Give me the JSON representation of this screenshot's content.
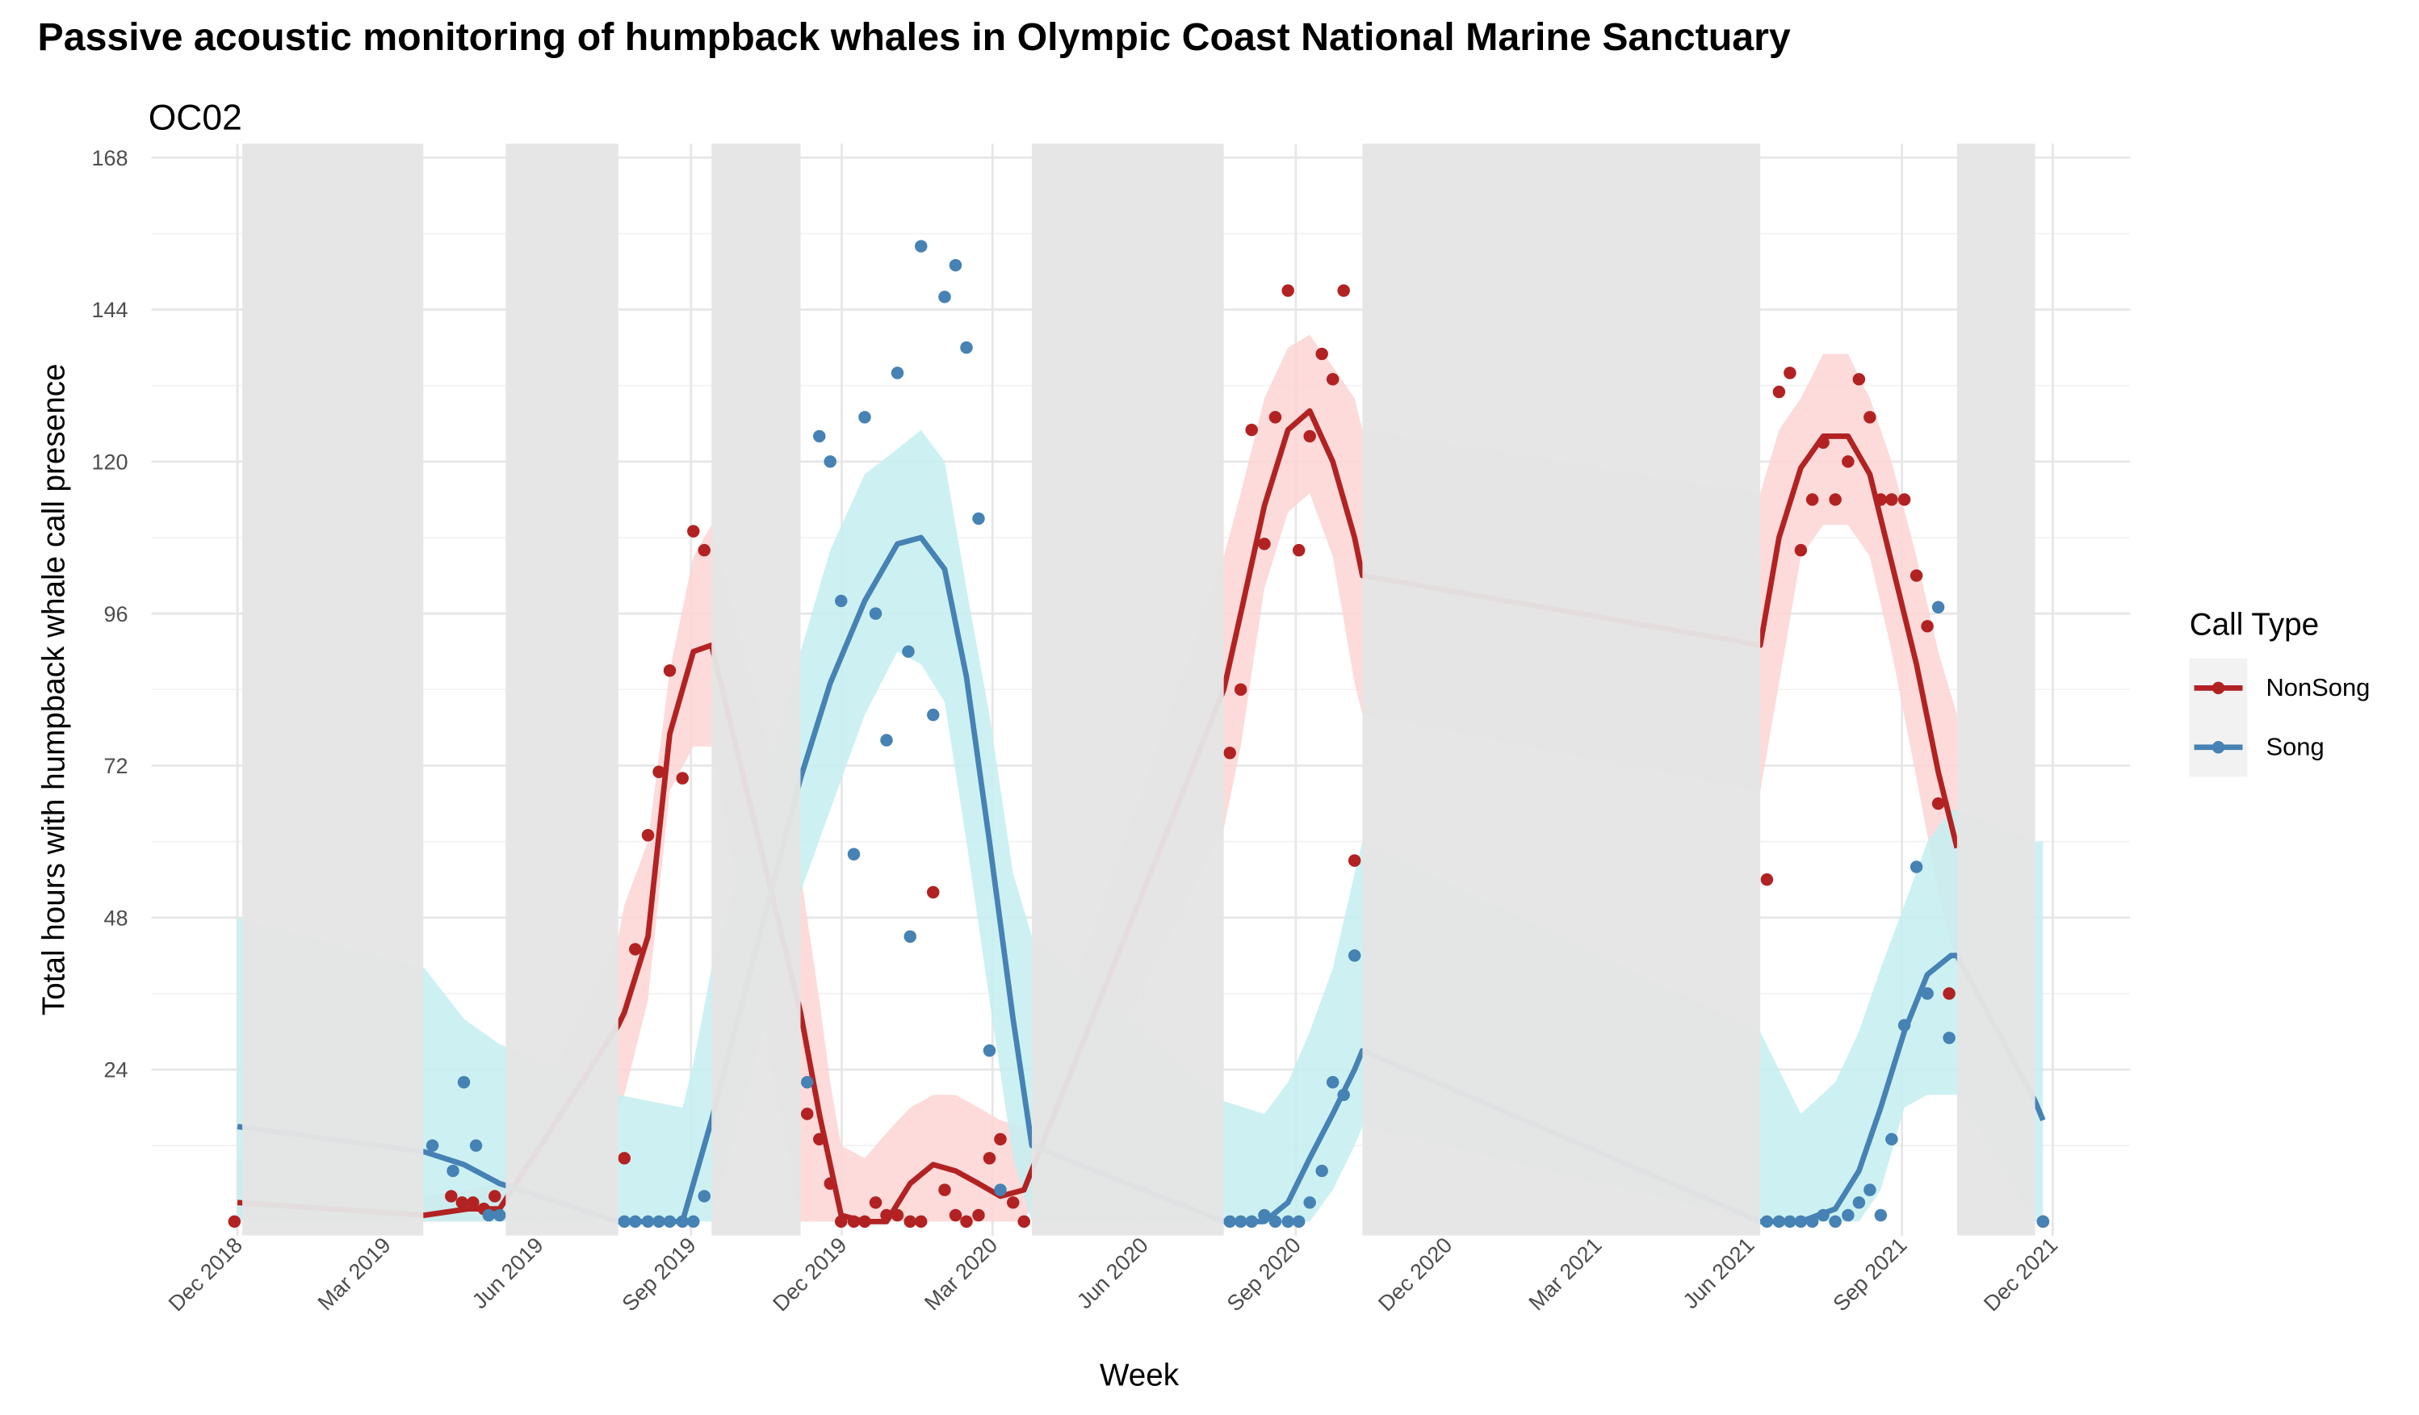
{
  "chart_data": {
    "type": "scatter",
    "title": "Passive acoustic monitoring of humpback whales in Olympic Coast National Marine Sanctuary",
    "subtitle": "OC02",
    "x_label": "Week",
    "y_label": "Total hours with humpback whale call presence",
    "legend_title": "Call Type",
    "legend_position": "right",
    "grid": true,
    "xlim": [
      2018.775,
      2022.043
    ],
    "ylim": [
      0,
      168
    ],
    "xticks": [
      {
        "value": 2018.917,
        "label": "Dec 2018"
      },
      {
        "value": 2019.162,
        "label": "Mar 2019"
      },
      {
        "value": 2019.414,
        "label": "Jun 2019"
      },
      {
        "value": 2019.666,
        "label": "Sep 2019"
      },
      {
        "value": 2019.915,
        "label": "Dec 2019"
      },
      {
        "value": 2020.164,
        "label": "Mar 2020"
      },
      {
        "value": 2020.413,
        "label": "Jun 2020"
      },
      {
        "value": 2020.665,
        "label": "Sep 2020"
      },
      {
        "value": 2020.915,
        "label": "Dec 2020"
      },
      {
        "value": 2021.162,
        "label": "Mar 2021"
      },
      {
        "value": 2021.414,
        "label": "Jun 2021"
      },
      {
        "value": 2021.666,
        "label": "Sep 2021"
      },
      {
        "value": 2021.915,
        "label": "Dec 2021"
      }
    ],
    "yticks": [
      24,
      48,
      72,
      96,
      120,
      144,
      168
    ],
    "y_minor_ticks": [
      12,
      36,
      60,
      84,
      108,
      132,
      156
    ],
    "gaps": [
      [
        2018.925,
        2019.224
      ],
      [
        2019.36,
        2019.546
      ],
      [
        2019.7,
        2019.847
      ],
      [
        2020.229,
        2020.546
      ],
      [
        2020.775,
        2021.432
      ],
      [
        2021.757,
        2021.886
      ]
    ],
    "gap_color": "#e5e5e5",
    "series": [
      {
        "name": "NonSong",
        "color": "#b22222",
        "band_color": "#fdd5d5",
        "x": [
          2018.912,
          2019.27,
          2019.288,
          2019.306,
          2019.324,
          2019.342,
          2019.556,
          2019.574,
          2019.595,
          2019.613,
          2019.631,
          2019.652,
          2019.67,
          2019.688,
          2019.858,
          2019.878,
          2019.896,
          2019.914,
          2019.935,
          2019.953,
          2019.971,
          2019.989,
          2020.007,
          2020.028,
          2020.046,
          2020.066,
          2020.085,
          2020.103,
          2020.121,
          2020.141,
          2020.159,
          2020.177,
          2020.198,
          2020.216,
          2020.556,
          2020.574,
          2020.592,
          2020.613,
          2020.631,
          2020.652,
          2020.67,
          2020.688,
          2020.708,
          2020.726,
          2020.744,
          2020.762,
          2021.443,
          2021.463,
          2021.481,
          2021.499,
          2021.518,
          2021.536,
          2021.556,
          2021.577,
          2021.595,
          2021.613,
          2021.631,
          2021.649,
          2021.67,
          2021.69,
          2021.708,
          2021.726,
          2021.744,
          2021.899
        ],
        "values": [
          0,
          4,
          3,
          3,
          2,
          4,
          10,
          43,
          61,
          71,
          87,
          70,
          109,
          106,
          17,
          13,
          6,
          0,
          0,
          0,
          3,
          1,
          1,
          0,
          0,
          52,
          5,
          1,
          0,
          1,
          10,
          13,
          3,
          0,
          74,
          84,
          125,
          107,
          127,
          147,
          106,
          124,
          137,
          133,
          147,
          57,
          54,
          131,
          134,
          106,
          114,
          123,
          114,
          120,
          133,
          127,
          114,
          114,
          114,
          102,
          94,
          66,
          36,
          0
        ],
        "fit": {
          "x": [
            2018.917,
            2019.226,
            2019.298,
            2019.35,
            2019.546,
            2019.556,
            2019.595,
            2019.631,
            2019.67,
            2019.7,
            2019.847,
            2019.878,
            2019.896,
            2019.914,
            2019.953,
            2019.989,
            2020.028,
            2020.066,
            2020.103,
            2020.141,
            2020.177,
            2020.216,
            2020.546,
            2020.574,
            2020.613,
            2020.652,
            2020.688,
            2020.726,
            2020.762,
            2020.775,
            2021.432,
            2021.463,
            2021.499,
            2021.536,
            2021.577,
            2021.613,
            2021.649,
            2021.69,
            2021.726,
            2021.757
          ],
          "values": [
            3,
            1,
            2,
            2,
            31,
            33,
            45,
            77,
            90,
            91,
            33,
            17,
            9,
            1,
            0,
            0,
            6,
            9,
            8,
            6,
            4,
            5,
            84,
            96,
            113,
            125,
            128,
            120,
            108,
            102,
            91,
            108,
            119,
            124,
            124,
            118,
            104,
            88,
            71,
            59
          ],
          "lower": [
            0,
            0,
            0,
            0,
            18,
            20,
            35,
            68,
            75,
            75,
            0,
            0,
            0,
            0,
            0,
            0,
            0,
            0,
            0,
            0,
            0,
            0,
            62,
            75,
            100,
            112,
            115,
            105,
            85,
            80,
            68,
            85,
            105,
            110,
            110,
            105,
            90,
            70,
            52,
            40
          ],
          "upper": [
            10,
            4,
            5,
            6,
            45,
            50,
            60,
            87,
            105,
            110,
            55,
            35,
            22,
            12,
            10,
            14,
            18,
            20,
            20,
            18,
            16,
            15,
            105,
            115,
            130,
            138,
            140,
            135,
            130,
            125,
            115,
            125,
            130,
            137,
            137,
            130,
            120,
            105,
            90,
            80
          ]
        }
      },
      {
        "name": "Song",
        "color": "#4682b4",
        "band_color": "#c4eef0",
        "x": [
          2019.239,
          2019.273,
          2019.291,
          2019.311,
          2019.332,
          2019.35,
          2019.556,
          2019.574,
          2019.595,
          2019.613,
          2019.631,
          2019.652,
          2019.67,
          2019.688,
          2019.858,
          2019.878,
          2019.896,
          2019.914,
          2019.935,
          2019.953,
          2019.971,
          2019.989,
          2020.007,
          2020.025,
          2020.028,
          2020.046,
          2020.066,
          2020.085,
          2020.103,
          2020.121,
          2020.141,
          2020.159,
          2020.177,
          2020.556,
          2020.574,
          2020.592,
          2020.613,
          2020.631,
          2020.652,
          2020.67,
          2020.688,
          2020.708,
          2020.726,
          2020.744,
          2020.762,
          2021.443,
          2021.463,
          2021.481,
          2021.499,
          2021.518,
          2021.536,
          2021.556,
          2021.577,
          2021.595,
          2021.613,
          2021.631,
          2021.649,
          2021.67,
          2021.69,
          2021.708,
          2021.726,
          2021.744,
          2021.899
        ],
        "values": [
          12,
          8,
          22,
          12,
          1,
          1,
          0,
          0,
          0,
          0,
          0,
          0,
          0,
          4,
          22,
          124,
          120,
          98,
          58,
          127,
          96,
          76,
          134,
          90,
          45,
          154,
          80,
          146,
          151,
          138,
          111,
          27,
          5,
          0,
          0,
          0,
          1,
          0,
          0,
          0,
          3,
          8,
          22,
          20,
          42,
          0,
          0,
          0,
          0,
          0,
          1,
          0,
          1,
          3,
          5,
          1,
          13,
          31,
          56,
          36,
          97,
          29,
          0
        ],
        "fit": {
          "x": [
            2018.917,
            2019.226,
            2019.291,
            2019.35,
            2019.546,
            2019.652,
            2019.67,
            2019.7,
            2019.847,
            2019.896,
            2019.953,
            2020.007,
            2020.046,
            2020.085,
            2020.121,
            2020.159,
            2020.198,
            2020.229,
            2020.546,
            2020.613,
            2020.652,
            2020.688,
            2020.726,
            2020.762,
            2020.775,
            2021.432,
            2021.499,
            2021.556,
            2021.595,
            2021.631,
            2021.67,
            2021.708,
            2021.747,
            2021.757,
            2021.886,
            2021.899
          ],
          "values": [
            15,
            11,
            9,
            6,
            0,
            0,
            6,
            16,
            70,
            85,
            98,
            107,
            108,
            103,
            86,
            60,
            32,
            12,
            0,
            0,
            3,
            10,
            17,
            24,
            27,
            0,
            0,
            2,
            8,
            18,
            30,
            39,
            42,
            42,
            19,
            16
          ],
          "lower": [
            0,
            0,
            0,
            0,
            0,
            0,
            0,
            0,
            52,
            65,
            80,
            90,
            88,
            82,
            60,
            35,
            10,
            0,
            0,
            0,
            0,
            0,
            5,
            12,
            15,
            0,
            0,
            0,
            0,
            5,
            18,
            20,
            20,
            20,
            0,
            0
          ],
          "upper": [
            48,
            40,
            32,
            28,
            20,
            18,
            25,
            40,
            90,
            106,
            118,
            122,
            125,
            120,
            100,
            80,
            55,
            45,
            19,
            17,
            22,
            30,
            40,
            55,
            60,
            30,
            17,
            22,
            30,
            40,
            50,
            60,
            65,
            65,
            60,
            60
          ]
        }
      }
    ]
  }
}
